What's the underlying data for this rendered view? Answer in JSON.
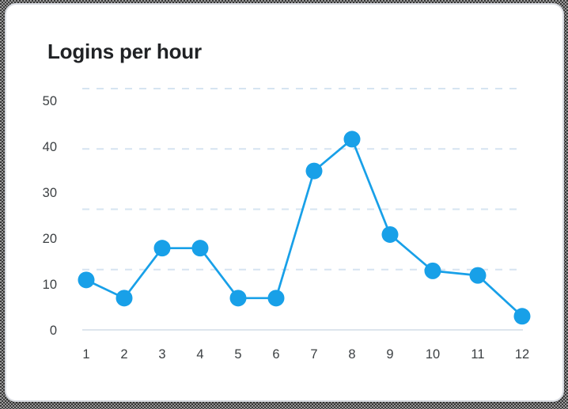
{
  "card": {
    "title": "Logins per hour"
  },
  "chart_data": {
    "type": "line",
    "title": "Logins per hour",
    "x": [
      "1",
      "2",
      "3",
      "4",
      "5",
      "6",
      "7",
      "8",
      "9",
      "10",
      "11",
      "12"
    ],
    "values": [
      11,
      7,
      18,
      18,
      7,
      7,
      35,
      42,
      21,
      13,
      12,
      3
    ],
    "xlabel": "",
    "ylabel": "",
    "y_tick_labels": [
      "50",
      "40",
      "30",
      "20",
      "10",
      "0"
    ],
    "ylim": [
      0,
      50
    ],
    "grid": "horizontal-dashed",
    "legend": "none",
    "marker": "filled-circle"
  },
  "colors": {
    "accent_blue": "#18a0e8",
    "gridline_dashed": "#d6e4f1",
    "baseline": "#dde5ed",
    "title_text": "#202225",
    "tick_text": "#3c4043",
    "card_bg": "#ffffff",
    "card_border": "#d9dce2"
  }
}
